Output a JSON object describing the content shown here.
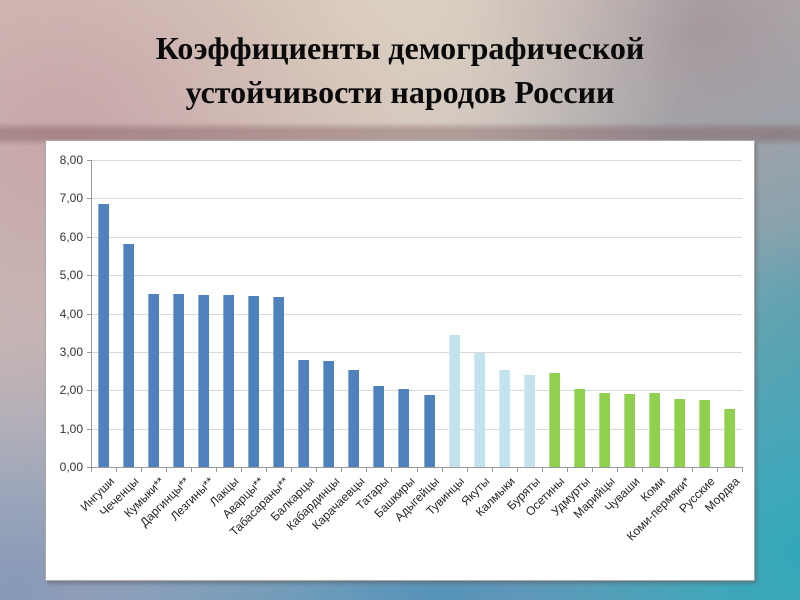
{
  "slide": {
    "title_line1": "Коэффициенты демографической",
    "title_line2": "устойчивости народов России"
  },
  "chart_data": {
    "type": "bar",
    "title": "Коэффициенты демографической устойчивости народов России",
    "categories": [
      "Ингуши",
      "Чеченцы",
      "Кумыки**",
      "Даргинцы**",
      "Лезгины**",
      "Лакцы",
      "Аварцы**",
      "Табасараны**",
      "Балкарцы",
      "Кабардинцы",
      "Карачаевцы",
      "Татары",
      "Башкиры",
      "Адыгейцы",
      "Тувинцы",
      "Якуты",
      "Калмыки",
      "Буряты",
      "Осетины",
      "Удмурты",
      "Марийцы",
      "Чуваши",
      "Коми",
      "Коми-пермяки*",
      "Русские",
      "Мордва"
    ],
    "values": [
      6.85,
      5.8,
      4.52,
      4.5,
      4.48,
      4.47,
      4.45,
      4.42,
      2.8,
      2.75,
      2.52,
      2.12,
      2.03,
      1.88,
      3.45,
      2.97,
      2.52,
      2.4,
      2.45,
      2.03,
      1.93,
      1.9,
      1.92,
      1.78,
      1.75,
      1.52
    ],
    "bar_colors": [
      "#4f81bd",
      "#4f81bd",
      "#4f81bd",
      "#4f81bd",
      "#4f81bd",
      "#4f81bd",
      "#4f81bd",
      "#4f81bd",
      "#4f81bd",
      "#4f81bd",
      "#4f81bd",
      "#4f81bd",
      "#4f81bd",
      "#4f81bd",
      "#c2e2ee",
      "#c2e2ee",
      "#c2e2ee",
      "#c2e2ee",
      "#8fd04f",
      "#8fd04f",
      "#8fd04f",
      "#8fd04f",
      "#8fd04f",
      "#8fd04f",
      "#8fd04f",
      "#8fd04f"
    ],
    "xlabel": "",
    "ylabel": "",
    "ylim": [
      0,
      8
    ],
    "ytick_labels": [
      "0,00",
      "1,00",
      "2,00",
      "3,00",
      "4,00",
      "5,00",
      "6,00",
      "7,00",
      "8,00"
    ],
    "grid": true,
    "legend": "none"
  },
  "colors": {
    "bar_blue": "#4f81bd",
    "bar_lightblue": "#c2e2ee",
    "bar_green": "#8fd04f",
    "panel_background": "#ffffff",
    "gridline": "#d9d9d9",
    "axis": "#9a9a9a",
    "tick_label": "#333333",
    "title_text": "#0a0a0a"
  }
}
